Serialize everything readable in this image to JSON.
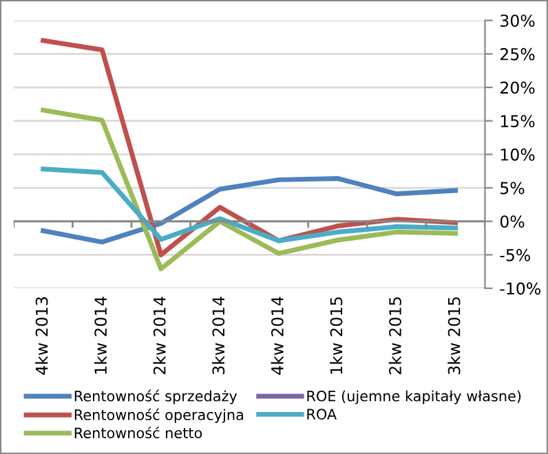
{
  "chart_data": {
    "type": "line",
    "categories": [
      "4kw 2013",
      "1kw 2014",
      "2kw 2014",
      "3kw 2014",
      "4kw 2014",
      "1kw 2015",
      "2kw 2015",
      "3kw 2015"
    ],
    "series": [
      {
        "name": "Rentowność sprzedaży",
        "color": "#4f81bd",
        "values": [
          -1.4,
          -3.1,
          -0.3,
          4.8,
          6.2,
          6.4,
          4.1,
          4.6
        ]
      },
      {
        "name": "Rentowność operacyjna",
        "color": "#c0504d",
        "values": [
          27.0,
          25.6,
          -5.0,
          2.1,
          -2.9,
          -0.7,
          0.3,
          -0.2
        ]
      },
      {
        "name": "Rentowność netto",
        "color": "#9bbb59",
        "values": [
          16.6,
          15.1,
          -7.1,
          0.0,
          -4.8,
          -2.8,
          -1.6,
          -1.8
        ]
      },
      {
        "name": "ROE (ujemne kapitały własne)",
        "color": "#8064a2",
        "values": [
          null,
          null,
          null,
          null,
          null,
          null,
          null,
          null
        ]
      },
      {
        "name": "ROA",
        "color": "#4bacc6",
        "values": [
          7.8,
          7.3,
          -2.7,
          0.4,
          -2.9,
          -1.6,
          -0.8,
          -1.0
        ]
      }
    ],
    "ylim": [
      -10,
      30
    ],
    "yticks": [
      {
        "value": -10,
        "label": "-10%"
      },
      {
        "value": -5,
        "label": "-5%"
      },
      {
        "value": 0,
        "label": "0%"
      },
      {
        "value": 5,
        "label": "5%"
      },
      {
        "value": 10,
        "label": "10%"
      },
      {
        "value": 15,
        "label": "15%"
      },
      {
        "value": 20,
        "label": "20%"
      },
      {
        "value": 25,
        "label": "25%"
      },
      {
        "value": 30,
        "label": "30%"
      }
    ],
    "grid": "y",
    "legend": "bottom",
    "marker": "none",
    "line_style": "solid"
  }
}
